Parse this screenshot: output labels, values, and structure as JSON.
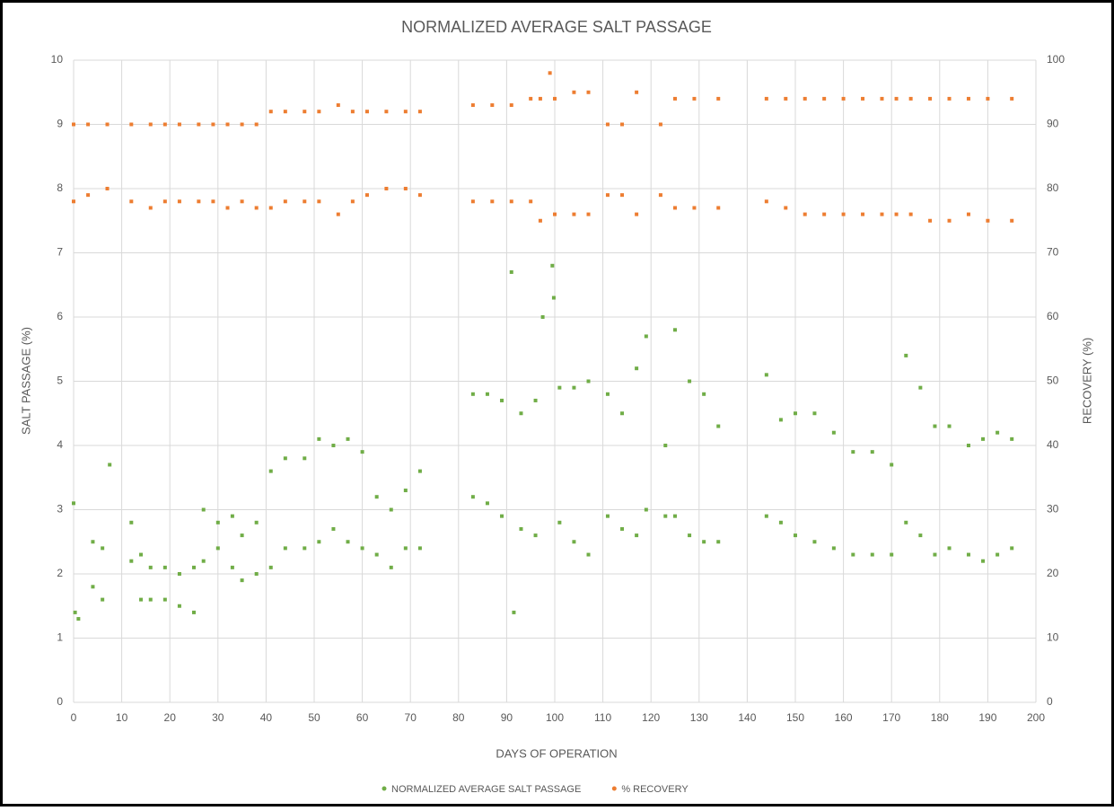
{
  "chart_data": {
    "type": "scatter",
    "title": "NORMALIZED AVERAGE SALT PASSAGE",
    "xlabel": "DAYS OF OPERATION",
    "ylabel": "SALT PASSAGE (%)",
    "y2label": "RECOVERY (%)",
    "xlim": [
      0,
      200
    ],
    "xticks": [
      0,
      10,
      20,
      30,
      40,
      50,
      60,
      70,
      80,
      90,
      100,
      110,
      120,
      130,
      140,
      150,
      160,
      170,
      180,
      190,
      200
    ],
    "ylim": [
      0,
      10
    ],
    "yticks": [
      0,
      1,
      2,
      3,
      4,
      5,
      6,
      7,
      8,
      9,
      10
    ],
    "y2lim": [
      0,
      100
    ],
    "y2ticks": [
      0,
      10,
      20,
      30,
      40,
      50,
      60,
      70,
      80,
      90,
      100
    ],
    "grid": true,
    "legend": "bottom",
    "series": [
      {
        "name": "NORMALIZED AVERAGE SALT PASSAGE",
        "color": "#70ad47",
        "axis": "y",
        "x": [
          0,
          0.3,
          1,
          4,
          4,
          6,
          6,
          7.5,
          12,
          12,
          14,
          14,
          16,
          16,
          19,
          19,
          22,
          22,
          25,
          25,
          27,
          27,
          30,
          30,
          33,
          33,
          35,
          35,
          38,
          38,
          41,
          41,
          44,
          44,
          48,
          48,
          51,
          51,
          54,
          54,
          57,
          57,
          60,
          60,
          63,
          63,
          66,
          66,
          69,
          69,
          72,
          72,
          83,
          83,
          86,
          86,
          89,
          89,
          91,
          91.5,
          93,
          93,
          96,
          96,
          97.5,
          99.5,
          99.8,
          101,
          101,
          104,
          104,
          107,
          107,
          111,
          111,
          114,
          114,
          117,
          117,
          119,
          119,
          123,
          123,
          125,
          125,
          128,
          128,
          131,
          131,
          134,
          134,
          144,
          144,
          147,
          147,
          150,
          150,
          154,
          154,
          158,
          158,
          162,
          162,
          166,
          166,
          170,
          170,
          173,
          173,
          176,
          176,
          179,
          179,
          182,
          182,
          186,
          186,
          189,
          189,
          192,
          192,
          195,
          195
        ],
        "values": [
          3.1,
          1.4,
          1.3,
          2.5,
          1.8,
          2.4,
          1.6,
          3.7,
          2.8,
          2.2,
          2.3,
          1.6,
          2.1,
          1.6,
          2.1,
          1.6,
          2.0,
          1.5,
          2.1,
          1.4,
          3.0,
          2.2,
          2.8,
          2.4,
          2.9,
          2.1,
          2.6,
          1.9,
          2.8,
          2.0,
          3.6,
          2.1,
          3.8,
          2.4,
          3.8,
          2.4,
          4.1,
          2.5,
          4.0,
          2.7,
          4.1,
          2.5,
          3.9,
          2.4,
          3.2,
          2.3,
          3.0,
          2.1,
          3.3,
          2.4,
          3.6,
          2.4,
          4.8,
          3.2,
          4.8,
          3.1,
          4.7,
          2.9,
          6.7,
          1.4,
          4.5,
          2.7,
          4.7,
          2.6,
          6.0,
          6.8,
          6.3,
          4.9,
          2.8,
          4.9,
          2.5,
          5.0,
          2.3,
          4.8,
          2.9,
          4.5,
          2.7,
          5.2,
          2.6,
          5.7,
          3.0,
          4.0,
          2.9,
          5.8,
          2.9,
          5.0,
          2.6,
          4.8,
          2.5,
          4.3,
          2.5,
          5.1,
          2.9,
          4.4,
          2.8,
          4.5,
          2.6,
          4.5,
          2.5,
          4.2,
          2.4,
          3.9,
          2.3,
          3.9,
          2.3,
          3.7,
          2.3,
          5.4,
          2.8,
          4.9,
          2.6,
          4.3,
          2.3,
          4.3,
          2.4,
          4.0,
          2.3,
          4.1,
          2.2,
          4.2,
          2.3,
          4.1,
          2.4
        ]
      },
      {
        "name": "% RECOVERY",
        "color": "#ed7d31",
        "axis": "y2",
        "x": [
          0,
          0,
          3,
          3,
          7,
          7,
          12,
          12,
          16,
          16,
          19,
          19,
          22,
          22,
          26,
          26,
          29,
          29,
          32,
          32,
          35,
          35,
          38,
          38,
          41,
          41,
          44,
          44,
          48,
          48,
          51,
          51,
          55,
          55,
          58,
          58,
          61,
          61,
          65,
          65,
          69,
          69,
          72,
          72,
          83,
          83,
          87,
          87,
          91,
          91,
          95,
          95,
          97,
          97,
          99,
          100,
          100,
          104,
          104,
          107,
          107,
          111,
          111,
          114,
          114,
          117,
          117,
          122,
          122,
          125,
          125,
          129,
          129,
          134,
          134,
          144,
          144,
          148,
          148,
          152,
          152,
          156,
          156,
          160,
          160,
          164,
          164,
          168,
          168,
          171,
          171,
          174,
          174,
          178,
          178,
          182,
          182,
          186,
          186,
          190,
          190,
          195,
          195
        ],
        "values": [
          90,
          78,
          90,
          79,
          90,
          80,
          90,
          78,
          90,
          77,
          90,
          78,
          90,
          78,
          90,
          78,
          90,
          78,
          90,
          77,
          90,
          78,
          90,
          77,
          92,
          77,
          92,
          78,
          92,
          78,
          92,
          78,
          93,
          76,
          92,
          78,
          92,
          79,
          92,
          80,
          92,
          80,
          92,
          79,
          93,
          78,
          93,
          78,
          93,
          78,
          94,
          78,
          94,
          75,
          98,
          94,
          76,
          95,
          76,
          95,
          76,
          90,
          79,
          90,
          79,
          95,
          76,
          90,
          79,
          94,
          77,
          94,
          77,
          94,
          77,
          94,
          78,
          94,
          77,
          94,
          76,
          94,
          76,
          94,
          76,
          94,
          76,
          94,
          76,
          94,
          76,
          94,
          76,
          94,
          75,
          94,
          75,
          94,
          76,
          94,
          75,
          94,
          75
        ]
      }
    ]
  }
}
